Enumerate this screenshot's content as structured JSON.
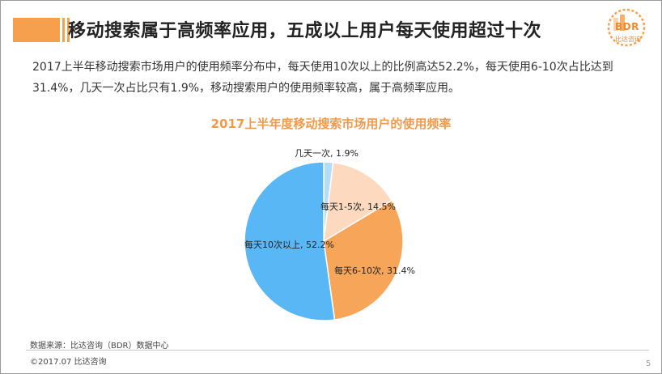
{
  "slide": {
    "title": "移动搜索属于高频率应用，五成以上用户每天使用超过十次",
    "paragraph": "2017上半年移动搜索市场用户的使用频率分布中，每天使用10次以上的比例高达52.2%，每天使用6-10次占比达到31.4%，几天一次占比只有1.9%，移动搜索用户的使用频率较高，属于高频率应用。",
    "source": "数据来源：比达咨询（BDR）数据中心",
    "copyright": "©2017.07   比达咨询",
    "page_number": "5"
  },
  "logo": {
    "text": "BDR",
    "sub": "比达咨询"
  },
  "colors": {
    "accent": "#f6a04d",
    "chart_title": "#f29a4a"
  },
  "chart_data": {
    "type": "pie",
    "title": "2017上半年度移动搜索市场用户的使用频率",
    "slices": [
      {
        "label": "几天一次",
        "value": 1.9,
        "display": "几天一次, 1.9%",
        "color": "#b7dcf7"
      },
      {
        "label": "每天1-5次",
        "value": 14.5,
        "display": "每天1-5次, 14.5%",
        "color": "#fcd9bf"
      },
      {
        "label": "每天6-10次",
        "value": 31.4,
        "display": "每天6-10次, 31.4%",
        "color": "#f7a559"
      },
      {
        "label": "每天10次以上",
        "value": 52.2,
        "display": "每天10次以上, 52.2%",
        "color": "#5ab7f6"
      }
    ]
  }
}
